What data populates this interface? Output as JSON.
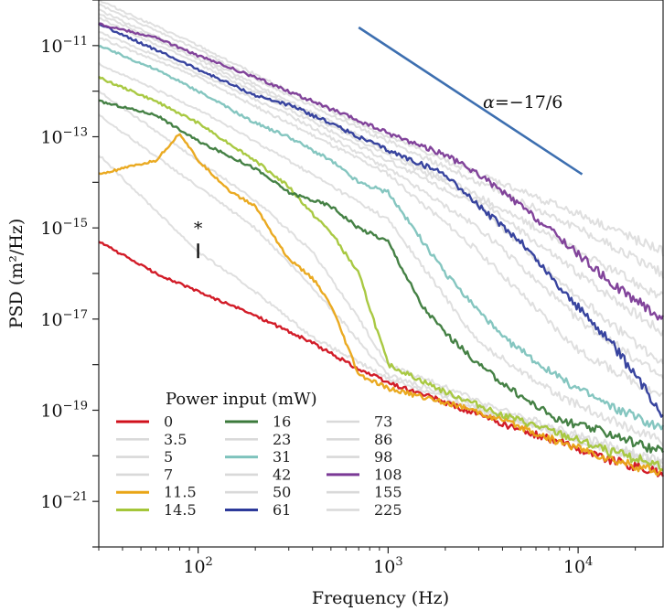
{
  "chart_data": {
    "type": "line",
    "title": "",
    "xlabel": "Frequency (Hz)",
    "ylabel": "PSD (m²/Hz)",
    "xscale": "log",
    "yscale": "log",
    "xlim": [
      30,
      28000
    ],
    "ylim": [
      1e-22,
      1e-10
    ],
    "x_ticks": [
      {
        "value": 100,
        "base": "10",
        "exp": "2"
      },
      {
        "value": 1000,
        "base": "10",
        "exp": "3"
      },
      {
        "value": 10000,
        "base": "10",
        "exp": "4"
      }
    ],
    "y_ticks": [
      {
        "value": 1e-11,
        "base": "10",
        "exp": "−11"
      },
      {
        "value": 1e-13,
        "base": "10",
        "exp": "−13"
      },
      {
        "value": 1e-15,
        "base": "10",
        "exp": "−15"
      },
      {
        "value": 1e-17,
        "base": "10",
        "exp": "−17"
      },
      {
        "value": 1e-19,
        "base": "10",
        "exp": "−19"
      },
      {
        "value": 1e-21,
        "base": "10",
        "exp": "−21"
      }
    ],
    "legend_title": "Power input (mW)",
    "legend_placement": "lower-left",
    "series": [
      {
        "name": "0",
        "color": "#d0101c",
        "highlight": true,
        "points": [
          [
            30,
            5e-16
          ],
          [
            60,
            1e-16
          ],
          [
            100,
            4e-17
          ],
          [
            200,
            1.2e-17
          ],
          [
            400,
            3e-18
          ],
          [
            700,
            8e-19
          ],
          [
            1000,
            4e-19
          ],
          [
            2000,
            1.5e-19
          ],
          [
            4000,
            5e-20
          ],
          [
            8000,
            2e-20
          ],
          [
            15000,
            8e-21
          ],
          [
            28000,
            4e-21
          ]
        ]
      },
      {
        "name": "3.5",
        "color": "#d9d9d9",
        "highlight": false,
        "points": [
          [
            30,
            4e-14
          ],
          [
            100,
            3e-16
          ],
          [
            200,
            4e-17
          ],
          [
            400,
            4e-18
          ],
          [
            1000,
            5e-19
          ],
          [
            4000,
            7e-20
          ],
          [
            28000,
            6e-21
          ]
        ]
      },
      {
        "name": "5",
        "color": "#d9d9d9",
        "highlight": false,
        "points": [
          [
            30,
            3e-13
          ],
          [
            100,
            8e-15
          ],
          [
            200,
            1e-15
          ],
          [
            400,
            5e-17
          ],
          [
            1000,
            6e-19
          ],
          [
            4000,
            8e-20
          ],
          [
            28000,
            6e-21
          ]
        ]
      },
      {
        "name": "7",
        "color": "#d9d9d9",
        "highlight": false,
        "points": [
          [
            30,
            1e-12
          ],
          [
            100,
            3e-14
          ],
          [
            200,
            4e-15
          ],
          [
            400,
            3e-16
          ],
          [
            700,
            1e-17
          ],
          [
            1000,
            1e-18
          ],
          [
            4000,
            1e-19
          ],
          [
            28000,
            7e-21
          ]
        ]
      },
      {
        "name": "11.5",
        "color": "#e9a516",
        "highlight": true,
        "points": [
          [
            30,
            1.5e-14
          ],
          [
            60,
            3e-14
          ],
          [
            80,
            1.2e-13
          ],
          [
            100,
            3e-14
          ],
          [
            150,
            6e-15
          ],
          [
            200,
            3e-15
          ],
          [
            300,
            2e-16
          ],
          [
            400,
            8e-17
          ],
          [
            500,
            2e-17
          ],
          [
            600,
            3e-18
          ],
          [
            700,
            6e-19
          ],
          [
            1000,
            3e-19
          ],
          [
            2000,
            1.5e-19
          ],
          [
            4000,
            6e-20
          ],
          [
            8000,
            2e-20
          ],
          [
            15000,
            8e-21
          ],
          [
            28000,
            4e-21
          ]
        ]
      },
      {
        "name": "14.5",
        "color": "#a4c639",
        "highlight": true,
        "points": [
          [
            30,
            2e-12
          ],
          [
            60,
            6e-13
          ],
          [
            100,
            2e-13
          ],
          [
            200,
            3e-14
          ],
          [
            300,
            8e-15
          ],
          [
            400,
            2e-15
          ],
          [
            500,
            8e-16
          ],
          [
            700,
            1e-16
          ],
          [
            1000,
            1e-18
          ],
          [
            2000,
            2.5e-19
          ],
          [
            4000,
            8e-20
          ],
          [
            8000,
            3e-20
          ],
          [
            15000,
            1.2e-20
          ],
          [
            28000,
            6e-21
          ]
        ]
      },
      {
        "name": "16",
        "color": "#3b7a3b",
        "highlight": true,
        "points": [
          [
            30,
            6e-13
          ],
          [
            60,
            3e-13
          ],
          [
            100,
            8e-14
          ],
          [
            200,
            2e-14
          ],
          [
            300,
            6e-15
          ],
          [
            500,
            3e-15
          ],
          [
            700,
            1e-15
          ],
          [
            1000,
            5e-16
          ],
          [
            1500,
            2e-17
          ],
          [
            2000,
            5e-18
          ],
          [
            3000,
            1e-18
          ],
          [
            4000,
            4e-19
          ],
          [
            5000,
            2e-19
          ],
          [
            8000,
            6e-20
          ],
          [
            15000,
            3e-20
          ],
          [
            28000,
            1.2e-20
          ]
        ]
      },
      {
        "name": "23",
        "color": "#d9d9d9",
        "highlight": false,
        "points": [
          [
            30,
            4e-12
          ],
          [
            100,
            4e-13
          ],
          [
            300,
            3e-14
          ],
          [
            1000,
            1.5e-15
          ],
          [
            3000,
            3e-18
          ],
          [
            8000,
            2e-19
          ],
          [
            28000,
            2e-20
          ]
        ]
      },
      {
        "name": "31",
        "color": "#7ec3bd",
        "highlight": true,
        "points": [
          [
            30,
            1e-11
          ],
          [
            60,
            3e-12
          ],
          [
            100,
            1e-12
          ],
          [
            200,
            2e-13
          ],
          [
            300,
            1e-13
          ],
          [
            500,
            3e-14
          ],
          [
            700,
            1e-14
          ],
          [
            1000,
            6e-15
          ],
          [
            2000,
            1e-16
          ],
          [
            4000,
            4e-18
          ],
          [
            8000,
            5e-19
          ],
          [
            15000,
            1.2e-19
          ],
          [
            28000,
            4e-20
          ]
        ]
      },
      {
        "name": "42",
        "color": "#d9d9d9",
        "highlight": false,
        "points": [
          [
            30,
            1.5e-11
          ],
          [
            100,
            2e-12
          ],
          [
            300,
            2e-13
          ],
          [
            1000,
            1.5e-14
          ],
          [
            3000,
            3e-16
          ],
          [
            10000,
            2e-18
          ],
          [
            28000,
            2e-19
          ]
        ]
      },
      {
        "name": "50",
        "color": "#d9d9d9",
        "highlight": false,
        "points": [
          [
            30,
            2e-11
          ],
          [
            100,
            2.5e-12
          ],
          [
            300,
            3e-13
          ],
          [
            1000,
            2e-14
          ],
          [
            3000,
            1e-15
          ],
          [
            10000,
            1e-17
          ],
          [
            28000,
            5e-19
          ]
        ]
      },
      {
        "name": "61",
        "color": "#2d3a9a",
        "highlight": true,
        "points": [
          [
            30,
            3e-11
          ],
          [
            60,
            8e-12
          ],
          [
            100,
            3e-12
          ],
          [
            200,
            8e-13
          ],
          [
            300,
            5e-13
          ],
          [
            500,
            2e-13
          ],
          [
            700,
            1e-13
          ],
          [
            1000,
            5e-14
          ],
          [
            2000,
            1.5e-14
          ],
          [
            3000,
            3e-15
          ],
          [
            5000,
            5e-16
          ],
          [
            8000,
            5e-17
          ],
          [
            15000,
            3e-18
          ],
          [
            28000,
            8e-20
          ]
        ]
      },
      {
        "name": "73",
        "color": "#d9d9d9",
        "highlight": false,
        "points": [
          [
            30,
            4e-11
          ],
          [
            100,
            4e-12
          ],
          [
            300,
            4e-13
          ],
          [
            1000,
            3e-14
          ],
          [
            3000,
            3e-15
          ],
          [
            10000,
            3e-17
          ],
          [
            28000,
            1e-18
          ]
        ]
      },
      {
        "name": "86",
        "color": "#d9d9d9",
        "highlight": false,
        "points": [
          [
            30,
            5e-11
          ],
          [
            100,
            5e-12
          ],
          [
            300,
            5e-13
          ],
          [
            1000,
            4e-14
          ],
          [
            3000,
            4e-15
          ],
          [
            10000,
            1e-16
          ],
          [
            28000,
            5e-18
          ]
        ]
      },
      {
        "name": "98",
        "color": "#d9d9d9",
        "highlight": false,
        "points": [
          [
            30,
            6e-11
          ],
          [
            100,
            6e-12
          ],
          [
            300,
            6e-13
          ],
          [
            1000,
            5e-14
          ],
          [
            3000,
            5e-15
          ],
          [
            10000,
            3e-16
          ],
          [
            28000,
            3e-17
          ]
        ]
      },
      {
        "name": "108",
        "color": "#7b3a96",
        "highlight": true,
        "points": [
          [
            30,
            3e-11
          ],
          [
            60,
            1.5e-11
          ],
          [
            100,
            6e-12
          ],
          [
            200,
            2e-12
          ],
          [
            300,
            1e-12
          ],
          [
            500,
            4e-13
          ],
          [
            1000,
            1.2e-13
          ],
          [
            2000,
            4e-14
          ],
          [
            3000,
            1.5e-14
          ],
          [
            5000,
            3e-15
          ],
          [
            8000,
            6e-16
          ],
          [
            15000,
            6e-17
          ],
          [
            28000,
            1e-17
          ]
        ]
      },
      {
        "name": "155",
        "color": "#d9d9d9",
        "highlight": false,
        "points": [
          [
            30,
            8e-11
          ],
          [
            100,
            8e-12
          ],
          [
            300,
            8e-13
          ],
          [
            1000,
            8e-14
          ],
          [
            3000,
            1e-14
          ],
          [
            10000,
            1e-15
          ],
          [
            28000,
            1e-16
          ]
        ]
      },
      {
        "name": "225",
        "color": "#d9d9d9",
        "highlight": false,
        "points": [
          [
            30,
            1e-10
          ],
          [
            100,
            1e-11
          ],
          [
            300,
            1e-12
          ],
          [
            1000,
            1e-13
          ],
          [
            3000,
            1.5e-14
          ],
          [
            10000,
            2e-15
          ],
          [
            28000,
            3e-16
          ]
        ]
      }
    ],
    "reference_line": {
      "label_symbol": "α",
      "label_value": "=−17/6",
      "color": "#3d6fb0",
      "x": [
        700,
        10500
      ],
      "y": [
        2.5e-11,
        1.5e-14
      ]
    },
    "annotation": {
      "text": "*",
      "x": 100,
      "y": 5e-16
    }
  }
}
